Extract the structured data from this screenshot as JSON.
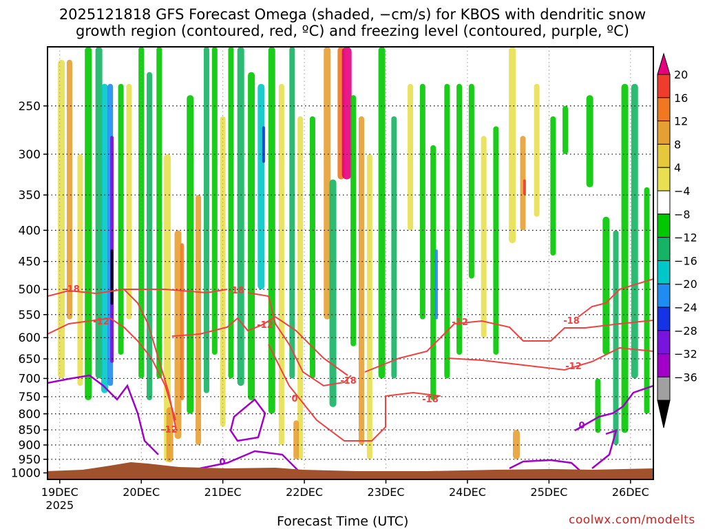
{
  "chart_data": {
    "type": "heatmap",
    "title_line1": "2025121818 GFS Forecast Omega (shaded, −cm/s) for KBOS with dendritic snow",
    "title_line2": "growth region (contoured, red, ºC) and freezing level (contoured, purple, ºC)",
    "xlabel": "Forecast Time (UTC)",
    "credit": "coolwx.com/modelts",
    "x_ticks": [
      "19DEC",
      "20DEC",
      "21DEC",
      "22DEC",
      "23DEC",
      "24DEC",
      "25DEC",
      "26DEC"
    ],
    "x_year": "2025",
    "x_range_days": [
      18.85,
      26.28
    ],
    "y_ticks": [
      250,
      300,
      350,
      400,
      450,
      500,
      550,
      600,
      650,
      700,
      750,
      800,
      850,
      900,
      950,
      1000
    ],
    "y_tick_labels": [
      "250",
      "300",
      "350",
      "400",
      "450",
      "500",
      "550",
      "600",
      "650",
      "700",
      "750",
      "800",
      "850",
      "900",
      "950",
      "1000"
    ],
    "y_range_hPa": [
      200,
      1025
    ],
    "colorbar": {
      "levels": [
        -36,
        -32,
        -28,
        -24,
        -20,
        -16,
        -12,
        -8,
        -4,
        4,
        8,
        12,
        16,
        20
      ],
      "labels": [
        "20",
        "16",
        "12",
        "8",
        "4",
        "−4",
        "−8",
        "−12",
        "−16",
        "−20",
        "−24",
        "−28",
        "−32",
        "−36"
      ],
      "colors": [
        "#e6007e",
        "#f03c2c",
        "#f07820",
        "#e6a032",
        "#e6c83c",
        "#e8e050",
        "#ffffff",
        "#00c800",
        "#14b464",
        "#00c8c8",
        "#1e8cf0",
        "#1432e6",
        "#7814dc",
        "#a000c8",
        "#a0a0a0",
        "#000000"
      ]
    },
    "contour_labels": {
      "dgz": [
        "-18",
        "-12",
        "-18",
        "-12",
        "-18",
        "-18",
        "-12",
        "-18",
        "-12",
        "-12"
      ],
      "freezing": [
        "0",
        "0",
        "0"
      ]
    },
    "surface_fill": "#a0522d"
  }
}
